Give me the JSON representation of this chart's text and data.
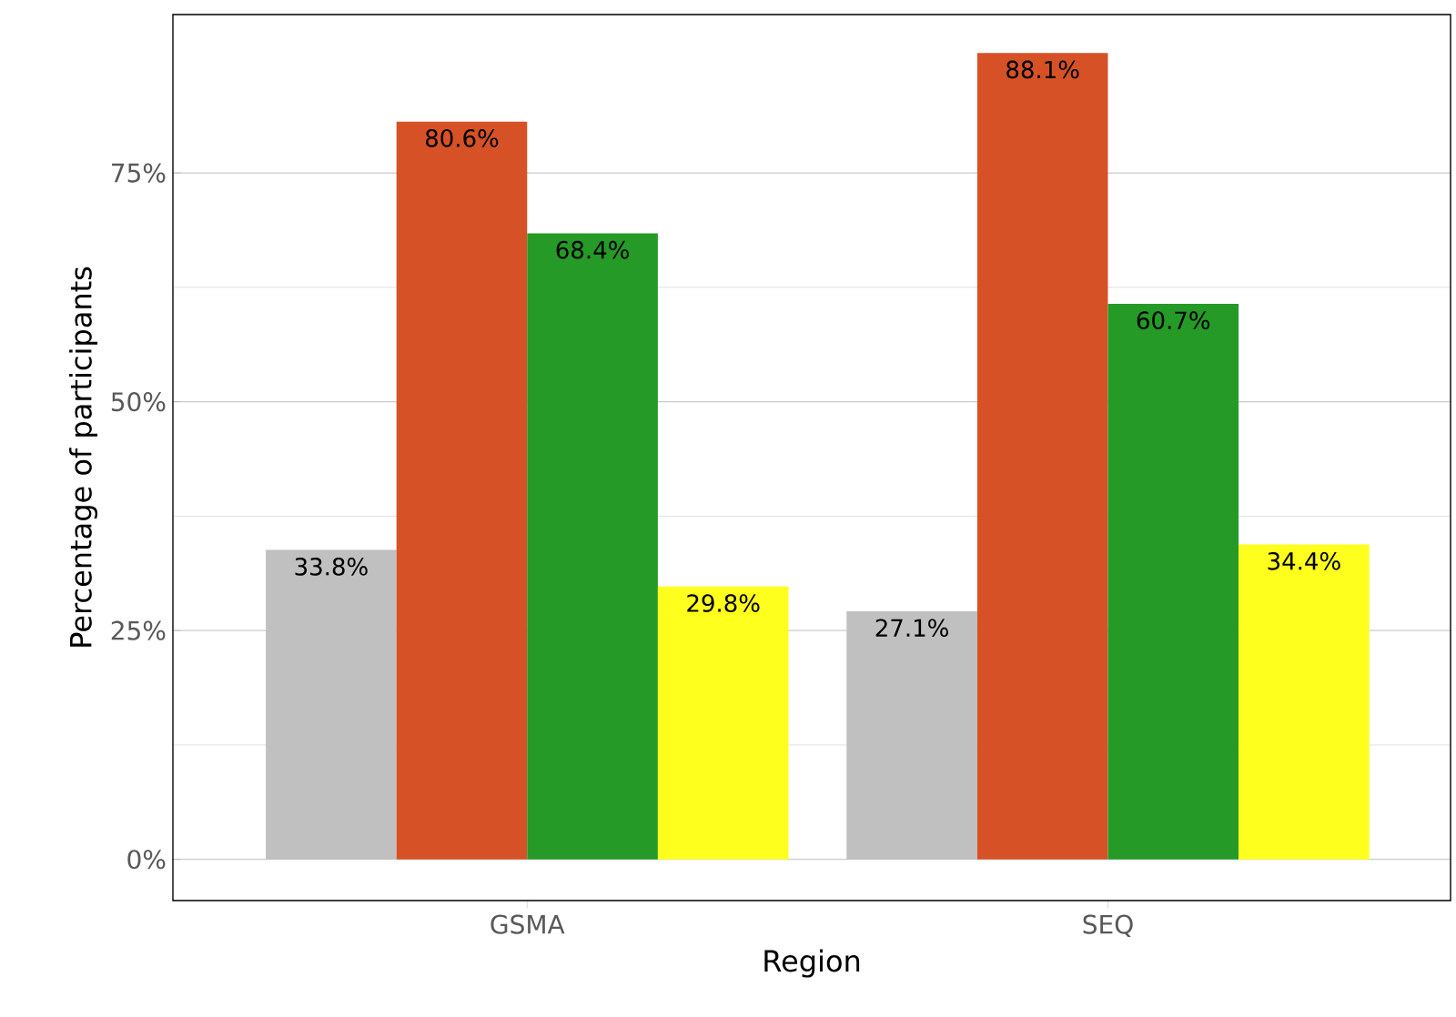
{
  "chart_data": {
    "type": "bar",
    "xlabel": "Region",
    "ylabel": "Percentage of participants",
    "categories": [
      "GSMA",
      "SEQ"
    ],
    "series": [
      {
        "color": "#c0c0c0",
        "values": [
          33.8,
          27.1
        ],
        "value_labels": [
          "33.8%",
          "27.1%"
        ]
      },
      {
        "color": "#d65226",
        "values": [
          80.6,
          88.1
        ],
        "value_labels": [
          "80.6%",
          "88.1%"
        ]
      },
      {
        "color": "#259a26",
        "values": [
          68.4,
          60.7
        ],
        "value_labels": [
          "68.4%",
          "60.7%"
        ]
      },
      {
        "color": "#ffff1e",
        "values": [
          29.8,
          34.4
        ],
        "value_labels": [
          "29.8%",
          "34.4%"
        ]
      }
    ],
    "ylim": [
      -4.5,
      92.3
    ],
    "yticks": [
      {
        "value": 0,
        "label": "0%"
      },
      {
        "value": 25,
        "label": "25%"
      },
      {
        "value": 50,
        "label": "50%"
      },
      {
        "value": 75,
        "label": "75%"
      }
    ],
    "grid": "y"
  }
}
